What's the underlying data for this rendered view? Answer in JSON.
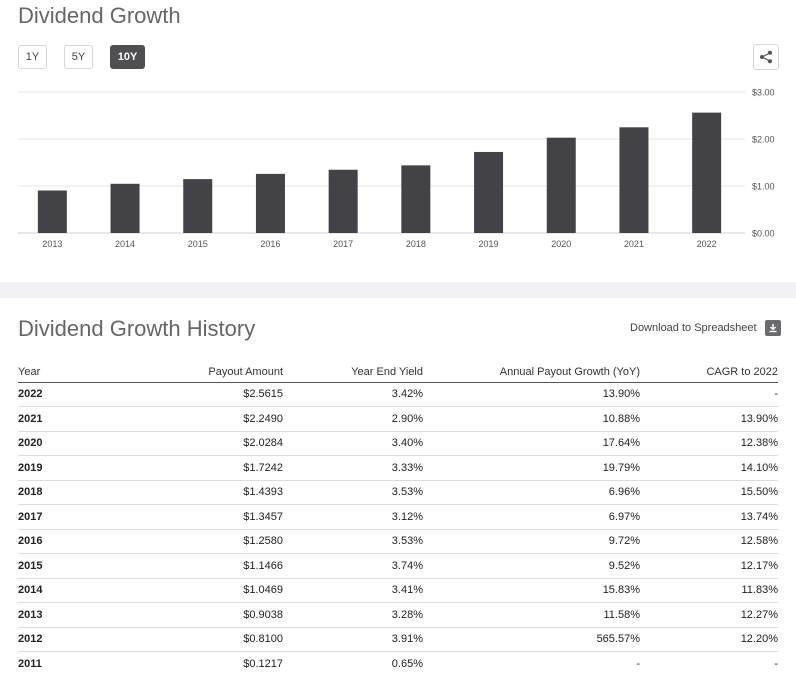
{
  "header": {
    "title": "Dividend Growth",
    "periods": [
      "1Y",
      "5Y",
      "10Y"
    ],
    "active_period": "10Y"
  },
  "chart_data": {
    "type": "bar",
    "title": "Dividend Growth",
    "categories": [
      "2013",
      "2014",
      "2015",
      "2016",
      "2017",
      "2018",
      "2019",
      "2020",
      "2021",
      "2022"
    ],
    "values": [
      0.9038,
      1.0469,
      1.1466,
      1.258,
      1.3457,
      1.4393,
      1.7242,
      2.0284,
      2.249,
      2.5615
    ],
    "ylim": [
      0,
      3
    ],
    "yticks": [
      "$0.00",
      "$1.00",
      "$2.00",
      "$3.00"
    ],
    "ytick_values": [
      0,
      1,
      2,
      3
    ],
    "grid": true,
    "bar_color": "#434246"
  },
  "history": {
    "title": "Dividend Growth History",
    "download_label": "Download to Spreadsheet",
    "columns": [
      "Year",
      "Payout Amount",
      "Year End Yield",
      "Annual Payout Growth (YoY)",
      "CAGR to 2022"
    ],
    "rows": [
      [
        "2022",
        "$2.5615",
        "3.42%",
        "13.90%",
        "-"
      ],
      [
        "2021",
        "$2.2490",
        "2.90%",
        "10.88%",
        "13.90%"
      ],
      [
        "2020",
        "$2.0284",
        "3.40%",
        "17.64%",
        "12.38%"
      ],
      [
        "2019",
        "$1.7242",
        "3.33%",
        "19.79%",
        "14.10%"
      ],
      [
        "2018",
        "$1.4393",
        "3.53%",
        "6.96%",
        "15.50%"
      ],
      [
        "2017",
        "$1.3457",
        "3.12%",
        "6.97%",
        "13.74%"
      ],
      [
        "2016",
        "$1.2580",
        "3.53%",
        "9.72%",
        "12.58%"
      ],
      [
        "2015",
        "$1.1466",
        "3.74%",
        "9.52%",
        "12.17%"
      ],
      [
        "2014",
        "$1.0469",
        "3.41%",
        "15.83%",
        "11.83%"
      ],
      [
        "2013",
        "$0.9038",
        "3.28%",
        "11.58%",
        "12.27%"
      ],
      [
        "2012",
        "$0.8100",
        "3.91%",
        "565.57%",
        "12.20%"
      ],
      [
        "2011",
        "$0.1217",
        "0.65%",
        "-",
        "-"
      ]
    ]
  }
}
